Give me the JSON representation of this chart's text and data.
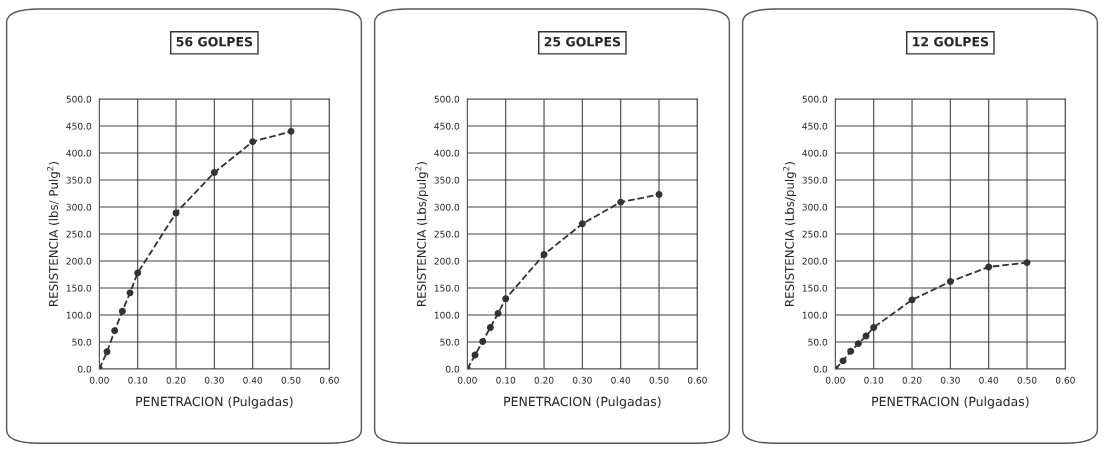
{
  "chart_data": [
    {
      "type": "line",
      "title": "56 GOLPES",
      "xlabel": "PENETRACION (Pulgadas)",
      "ylabel": "RESISTENCIA (lbs/ Pulg$^{2}$)",
      "x": [
        0,
        0.02,
        0.04,
        0.06,
        0.08,
        0.1,
        0.2,
        0.3,
        0.4,
        0.5
      ],
      "series": [
        {
          "color": "#333333",
          "values": [
            0,
            32,
            71,
            107,
            141,
            178,
            289,
            364,
            421,
            440
          ]
        }
      ],
      "xlim": [
        0,
        0.6
      ],
      "ylim": [
        0,
        500
      ],
      "xticks": [
        {
          "value": 0,
          "label": "0.00"
        },
        {
          "value": 0.1,
          "label": "0.10"
        },
        {
          "value": 0.2,
          "label": "0.20"
        },
        {
          "value": 0.3,
          "label": "0.30"
        },
        {
          "value": 0.4,
          "label": "0.40"
        },
        {
          "value": 0.5,
          "label": "0.50"
        },
        {
          "value": 0.6,
          "label": "0.60"
        }
      ],
      "yticks": [
        {
          "value": 0,
          "label": "0.0"
        },
        {
          "value": 50,
          "label": "50.0"
        },
        {
          "value": 100,
          "label": "100.0"
        },
        {
          "value": 150,
          "label": "150.0"
        },
        {
          "value": 200,
          "label": "200.0"
        },
        {
          "value": 250,
          "label": "250.0"
        },
        {
          "value": 300,
          "label": "300.0"
        },
        {
          "value": 350,
          "label": "350.0"
        },
        {
          "value": 400,
          "label": "400.0"
        },
        {
          "value": 450,
          "label": "450.0"
        },
        {
          "value": 500,
          "label": "500.0"
        }
      ],
      "grid": true,
      "marker": "circle",
      "line_style": "dashed"
    },
    {
      "type": "line",
      "title": "25 GOLPES",
      "xlabel": "PENETRACION (Pulgadas)",
      "ylabel": "RESISTENCIA (Lbs/pulg$^{2}$)",
      "x": [
        0,
        0.02,
        0.04,
        0.06,
        0.08,
        0.1,
        0.2,
        0.3,
        0.4,
        0.5
      ],
      "series": [
        {
          "color": "#333333",
          "values": [
            0,
            26,
            51,
            77,
            103,
            130,
            212,
            269,
            309,
            323
          ]
        }
      ],
      "xlim": [
        0,
        0.6
      ],
      "ylim": [
        0,
        500
      ],
      "xticks": [
        {
          "value": 0,
          "label": "0.00"
        },
        {
          "value": 0.1,
          "label": "0.10"
        },
        {
          "value": 0.2,
          "label": "0.20"
        },
        {
          "value": 0.3,
          "label": "0.30"
        },
        {
          "value": 0.4,
          "label": "0.40"
        },
        {
          "value": 0.5,
          "label": "0.50"
        },
        {
          "value": 0.6,
          "label": "0.60"
        }
      ],
      "yticks": [
        {
          "value": 0,
          "label": "0.0"
        },
        {
          "value": 50,
          "label": "50.0"
        },
        {
          "value": 100,
          "label": "100.0"
        },
        {
          "value": 150,
          "label": "150.0"
        },
        {
          "value": 200,
          "label": "200.0"
        },
        {
          "value": 250,
          "label": "250.0"
        },
        {
          "value": 300,
          "label": "300.0"
        },
        {
          "value": 350,
          "label": "350.0"
        },
        {
          "value": 400,
          "label": "400.0"
        },
        {
          "value": 450,
          "label": "450.0"
        },
        {
          "value": 500,
          "label": "500.0"
        }
      ],
      "grid": true,
      "marker": "circle",
      "line_style": "dashed"
    },
    {
      "type": "line",
      "title": "12 GOLPES",
      "xlabel": "PENETRACION (Pulgadas)",
      "ylabel": "RESISTENCIA (Lbs/pulg$^{2}$)",
      "x": [
        0,
        0.02,
        0.04,
        0.06,
        0.08,
        0.1,
        0.2,
        0.3,
        0.4,
        0.5
      ],
      "series": [
        {
          "color": "#333333",
          "values": [
            0,
            15,
            33,
            47,
            61,
            77,
            128,
            162,
            189,
            197
          ]
        }
      ],
      "xlim": [
        0,
        0.6
      ],
      "ylim": [
        0,
        500
      ],
      "xticks": [
        {
          "value": 0,
          "label": "0.00"
        },
        {
          "value": 0.1,
          "label": "0.10"
        },
        {
          "value": 0.2,
          "label": "0.20"
        },
        {
          "value": 0.3,
          "label": "0.30"
        },
        {
          "value": 0.4,
          "label": "0.40"
        },
        {
          "value": 0.5,
          "label": "0.50"
        },
        {
          "value": 0.6,
          "label": "0.60"
        }
      ],
      "yticks": [
        {
          "value": 0,
          "label": "0.0"
        },
        {
          "value": 50,
          "label": "50.0"
        },
        {
          "value": 100,
          "label": "100.0"
        },
        {
          "value": 150,
          "label": "150.0"
        },
        {
          "value": 200,
          "label": "200.0"
        },
        {
          "value": 250,
          "label": "250.0"
        },
        {
          "value": 300,
          "label": "300.0"
        },
        {
          "value": 350,
          "label": "350.0"
        },
        {
          "value": 400,
          "label": "400.0"
        },
        {
          "value": 450,
          "label": "450.0"
        },
        {
          "value": 500,
          "label": "500.0"
        }
      ],
      "grid": true,
      "marker": "circle",
      "line_style": "dashed"
    }
  ]
}
